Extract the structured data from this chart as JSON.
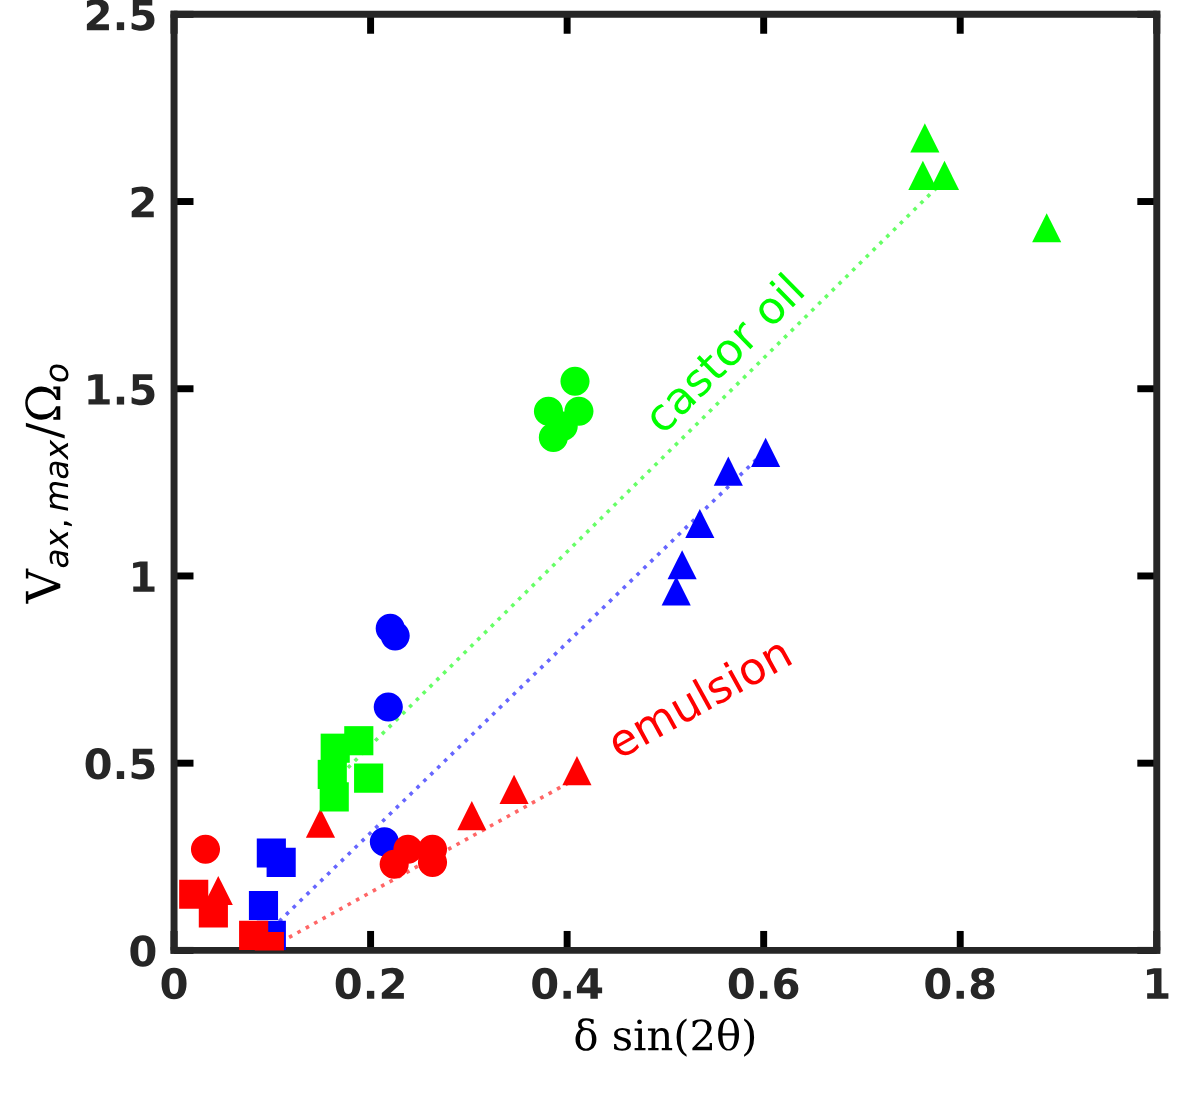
{
  "chart_data": {
    "type": "scatter",
    "xlabel": "δ sin(2θ)",
    "ylabel": "V$_{ax,max}$/Ω$_{o}$",
    "xlim": [
      0,
      1
    ],
    "ylim": [
      0,
      2.5
    ],
    "xticks": [
      0,
      0.2,
      0.4,
      0.6,
      0.8,
      1
    ],
    "yticks": [
      0,
      0.5,
      1,
      1.5,
      2,
      2.5
    ],
    "grid": false,
    "legend": false,
    "series": [
      {
        "marker": "circle",
        "color": "#0000ff",
        "x": [
          0.22,
          0.225,
          0.218,
          0.214
        ],
        "values": [
          0.86,
          0.84,
          0.65,
          0.29
        ]
      },
      {
        "marker": "square",
        "color": "#0000ff",
        "x": [
          0.099,
          0.109,
          0.091,
          0.099
        ],
        "values": [
          0.26,
          0.235,
          0.12,
          0.04
        ]
      },
      {
        "marker": "triangle",
        "color": "#0000ff",
        "x": [
          0.511,
          0.517,
          0.535,
          0.564,
          0.602
        ],
        "values": [
          0.96,
          1.03,
          1.14,
          1.28,
          1.33
        ]
      },
      {
        "marker": "circle",
        "color": "#ff0000",
        "x": [
          0.032,
          0.224,
          0.238,
          0.263,
          0.263
        ],
        "values": [
          0.27,
          0.23,
          0.27,
          0.27,
          0.235
        ]
      },
      {
        "marker": "square",
        "color": "#ff0000",
        "x": [
          0.02,
          0.04,
          0.081,
          0.097
        ],
        "values": [
          0.15,
          0.1,
          0.04,
          0.01
        ]
      },
      {
        "marker": "triangle",
        "color": "#ff0000",
        "x": [
          0.045,
          0.149,
          0.303,
          0.346,
          0.41
        ],
        "values": [
          0.16,
          0.34,
          0.36,
          0.43,
          0.48
        ]
      },
      {
        "marker": "square",
        "color": "#00ff00",
        "x": [
          0.164,
          0.188,
          0.161,
          0.198,
          0.163
        ],
        "values": [
          0.54,
          0.56,
          0.47,
          0.46,
          0.41
        ]
      },
      {
        "marker": "circle",
        "color": "#00ff00",
        "x": [
          0.408,
          0.381,
          0.412,
          0.386,
          0.396
        ],
        "values": [
          1.52,
          1.44,
          1.44,
          1.37,
          1.4
        ]
      },
      {
        "marker": "triangle",
        "color": "#00ff00",
        "x": [
          0.764,
          0.762,
          0.784,
          0.888
        ],
        "values": [
          2.17,
          2.07,
          2.07,
          1.93
        ]
      },
      {
        "type": "line",
        "name": "emulsion",
        "line_style": "dotted",
        "marker": "none",
        "color": "#ff6666",
        "x": [
          0.1,
          0.41
        ],
        "values": [
          0.01,
          0.46
        ]
      },
      {
        "type": "line",
        "line_style": "dotted",
        "marker": "none",
        "color": "#6666ff",
        "x": [
          0.1,
          0.6
        ],
        "values": [
          0.06,
          1.33
        ]
      },
      {
        "type": "line",
        "name": "castor oil",
        "line_style": "dotted",
        "marker": "none",
        "color": "#66ff66",
        "x": [
          0.17,
          0.785
        ],
        "values": [
          0.47,
          2.06
        ]
      }
    ]
  }
}
